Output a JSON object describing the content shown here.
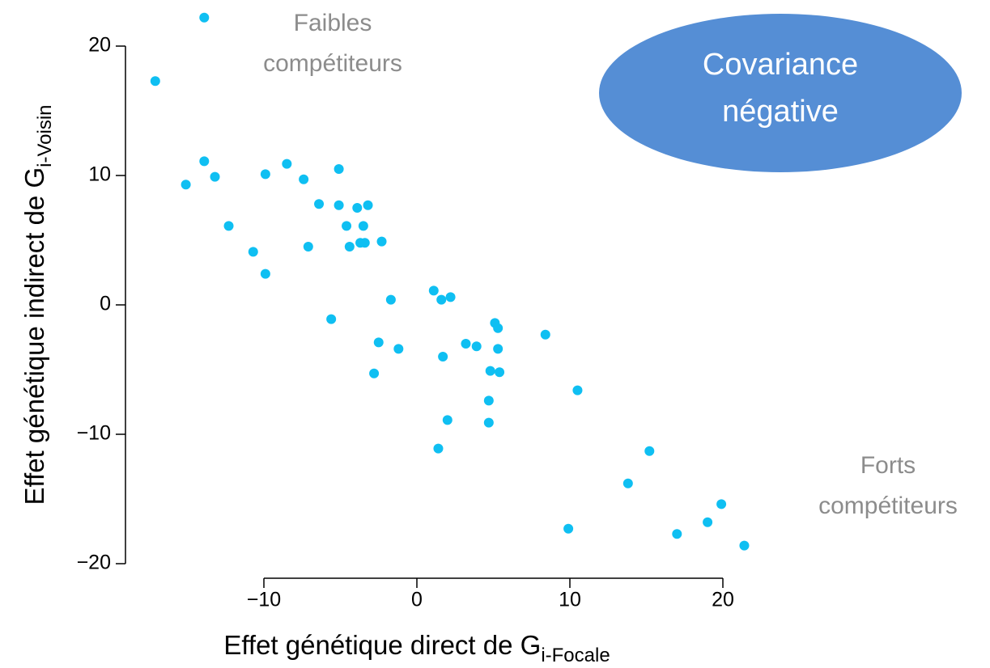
{
  "chart_data": {
    "type": "scatter",
    "xlabel": "Effet génétique direct de G",
    "xlabel_sub": "i-Focale",
    "ylabel": "Effet génétique indirect de G",
    "ylabel_sub": "i-Voisin",
    "annotations": [
      [
        "Faibles",
        "compétiteurs"
      ],
      [
        "Forts",
        "compétiteurs"
      ],
      [
        "Covariance",
        "négative"
      ]
    ],
    "color": "#0fbff2",
    "xlim": [
      -19,
      23
    ],
    "ylim": [
      -22,
      23
    ],
    "xticks": [
      {
        "value": -10,
        "label": "−10"
      },
      0,
      10,
      20
    ],
    "yticks": [
      {
        "value": -20,
        "label": "−20"
      },
      {
        "value": -10,
        "label": "−10"
      },
      0,
      10,
      20
    ],
    "x": [
      -13.9,
      -17.1,
      -13.9,
      -15.1,
      -13.2,
      -12.3,
      -10.7,
      -9.9,
      -9.9,
      -8.5,
      -7.4,
      -7.1,
      -6.4,
      -5.1,
      -5.1,
      -5.6,
      -4.6,
      -4.4,
      -3.9,
      -3.2,
      -3.5,
      -3.7,
      -3.4,
      -2.3,
      -2.5,
      -2.8,
      -1.2,
      -1.7,
      1.1,
      1.6,
      2.2,
      1.7,
      2.0,
      1.4,
      3.2,
      3.9,
      5.1,
      5.3,
      5.3,
      4.8,
      5.4,
      4.7,
      4.7,
      8.4,
      10.5,
      9.9,
      13.8,
      15.2,
      17.0,
      19.0,
      19.9,
      21.4
    ],
    "y": [
      22.2,
      17.3,
      11.1,
      9.3,
      9.9,
      6.1,
      4.1,
      10.1,
      2.4,
      10.9,
      9.7,
      4.5,
      7.8,
      10.5,
      7.7,
      -1.1,
      6.1,
      4.5,
      7.5,
      7.7,
      6.1,
      4.8,
      4.8,
      4.9,
      -2.9,
      -5.3,
      -3.4,
      0.4,
      1.1,
      0.4,
      0.6,
      -4.0,
      -8.9,
      -11.1,
      -3.0,
      -3.2,
      -1.4,
      -1.8,
      -3.4,
      -5.1,
      -5.2,
      -7.4,
      -9.1,
      -2.3,
      -6.6,
      -17.3,
      -13.8,
      -11.3,
      -17.7,
      -16.8,
      -15.4,
      -18.6
    ]
  }
}
